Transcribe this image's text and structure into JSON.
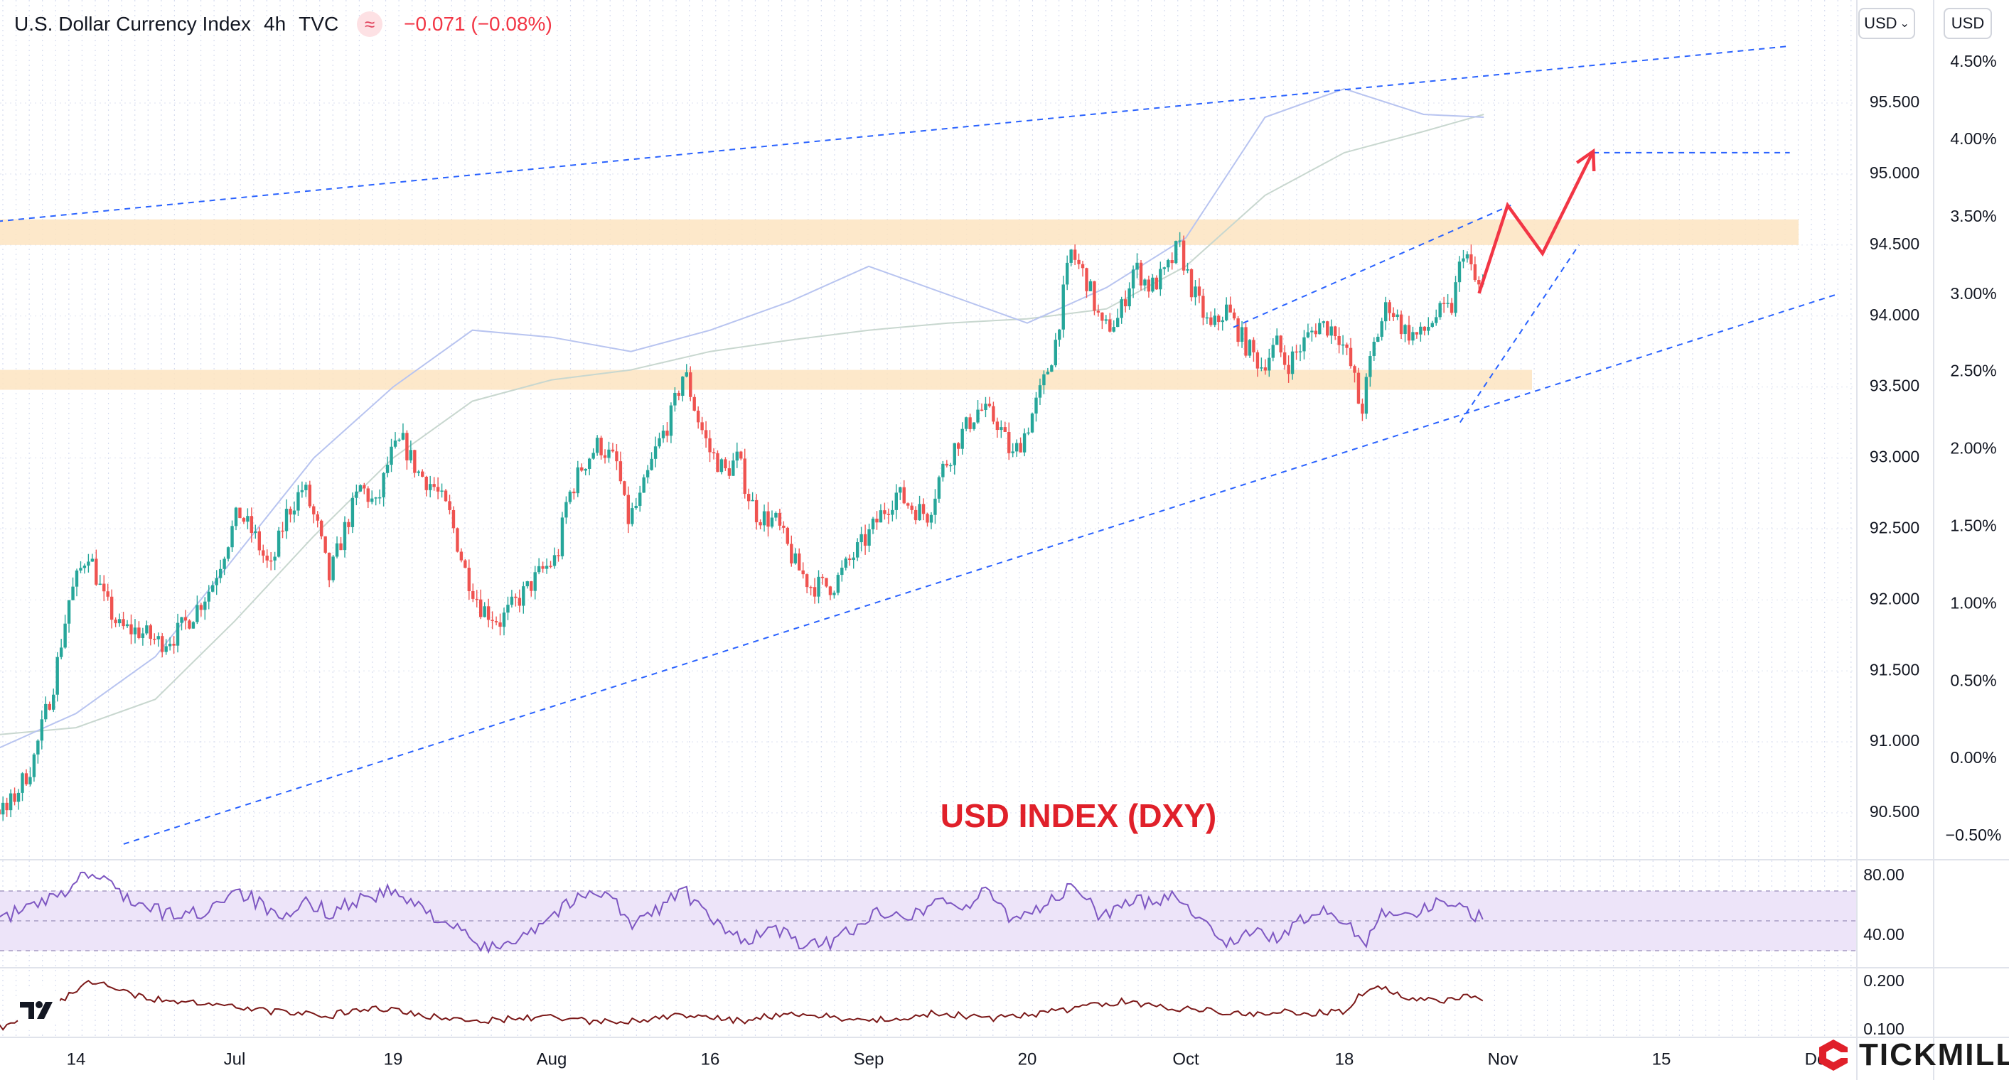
{
  "header": {
    "symbol": "U.S. Dollar Currency Index",
    "timeframe": "4h",
    "source": "TVC",
    "indicator_icon": "waves-icon",
    "change": "−0.071 (−0.08%)"
  },
  "controls": {
    "currency_select": "USD",
    "currency_select_icon": "chevron-down-icon",
    "pct_axis_label": "USD"
  },
  "brand": {
    "name": "TICKMILL",
    "icon": "tickmill-logo-icon"
  },
  "colors": {
    "up": "#26a69a",
    "down": "#ef5350",
    "trend": "#2962ff",
    "zone": "#fde4c1",
    "forecast": "#f23645",
    "rsi": "#7e57c2",
    "osc": "#7b1818",
    "ma": "#b8c4f0"
  },
  "chart_data": [
    {
      "type": "candlestick",
      "name": "price",
      "annotation": "USD INDEX (DXY)",
      "y_ticks": [
        "95.500",
        "95.000",
        "94.500",
        "94.000",
        "93.500",
        "93.000",
        "92.500",
        "92.000",
        "91.500",
        "91.000",
        "90.500"
      ],
      "y_ticks_values": [
        95.5,
        95.0,
        94.5,
        94.0,
        93.5,
        93.0,
        92.5,
        92.0,
        91.5,
        91.0,
        90.5
      ],
      "pct_ticks": [
        "4.50%",
        "4.00%",
        "3.50%",
        "3.00%",
        "2.50%",
        "2.00%",
        "1.50%",
        "1.00%",
        "0.50%",
        "0.00%",
        "−0.50%"
      ],
      "pct_ticks_values": [
        4.5,
        4.0,
        3.5,
        3.0,
        2.5,
        2.0,
        1.5,
        1.0,
        0.5,
        0.0,
        -0.5
      ],
      "x_ticks": [
        "14",
        "Jul",
        "19",
        "Aug",
        "16",
        "Sep",
        "20",
        "Oct",
        "18",
        "Nov",
        "15",
        "Dec"
      ],
      "x_ticks_pos": [
        0,
        1,
        2,
        3,
        4,
        5,
        6,
        7,
        8,
        9,
        10,
        11
      ],
      "ylim": [
        90.2,
        95.95
      ],
      "resistance_zones": [
        [
          94.5,
          94.68
        ],
        [
          93.48,
          93.62
        ]
      ],
      "channel_upper": [
        [
          -1.1,
          94.6
        ],
        [
          10.8,
          95.9
        ]
      ],
      "channel_lower": [
        [
          0.3,
          90.28
        ],
        [
          11.1,
          94.15
        ]
      ],
      "wedge_upper": [
        [
          7.3,
          93.92
        ],
        [
          9.05,
          94.78
        ]
      ],
      "wedge_lower": [
        [
          8.73,
          93.25
        ],
        [
          9.48,
          94.5
        ]
      ],
      "target_line": [
        [
          9.57,
          95.15
        ],
        [
          10.81,
          95.15
        ]
      ],
      "forecast_path": [
        [
          8.85,
          94.16
        ],
        [
          9.03,
          94.78
        ],
        [
          9.25,
          94.44
        ],
        [
          9.57,
          95.16
        ]
      ],
      "path": [
        [
          -1.0,
          90.3
        ],
        [
          -0.74,
          90.45
        ],
        [
          -0.55,
          90.6
        ],
        [
          -0.42,
          90.5
        ],
        [
          -0.25,
          90.85
        ],
        [
          -0.12,
          91.4
        ],
        [
          -0.02,
          92.0
        ],
        [
          0.1,
          92.35
        ],
        [
          0.2,
          92.0
        ],
        [
          0.3,
          91.8
        ],
        [
          0.42,
          91.78
        ],
        [
          0.55,
          91.7
        ],
        [
          0.65,
          91.75
        ],
        [
          0.76,
          91.9
        ],
        [
          0.88,
          92.1
        ],
        [
          0.96,
          92.35
        ],
        [
          1.05,
          92.62
        ],
        [
          1.15,
          92.45
        ],
        [
          1.25,
          92.2
        ],
        [
          1.35,
          92.6
        ],
        [
          1.46,
          92.8
        ],
        [
          1.55,
          92.5
        ],
        [
          1.62,
          92.15
        ],
        [
          1.72,
          92.5
        ],
        [
          1.82,
          92.8
        ],
        [
          1.92,
          92.65
        ],
        [
          2.0,
          93.0
        ],
        [
          2.08,
          93.12
        ],
        [
          2.18,
          92.9
        ],
        [
          2.28,
          92.8
        ],
        [
          2.38,
          92.6
        ],
        [
          2.48,
          92.2
        ],
        [
          2.58,
          91.95
        ],
        [
          2.7,
          91.85
        ],
        [
          2.85,
          92.05
        ],
        [
          2.96,
          92.2
        ],
        [
          3.06,
          92.3
        ],
        [
          3.12,
          92.7
        ],
        [
          3.22,
          92.95
        ],
        [
          3.32,
          93.1
        ],
        [
          3.44,
          92.95
        ],
        [
          3.5,
          92.55
        ],
        [
          3.58,
          92.7
        ],
        [
          3.68,
          93.05
        ],
        [
          3.78,
          93.3
        ],
        [
          3.86,
          93.62
        ],
        [
          3.94,
          93.3
        ],
        [
          4.02,
          93.05
        ],
        [
          4.12,
          92.9
        ],
        [
          4.2,
          93.0
        ],
        [
          4.26,
          92.75
        ],
        [
          4.32,
          92.6
        ],
        [
          4.44,
          92.55
        ],
        [
          4.56,
          92.25
        ],
        [
          4.66,
          92.1
        ],
        [
          4.8,
          92.1
        ],
        [
          4.92,
          92.3
        ],
        [
          5.02,
          92.45
        ],
        [
          5.1,
          92.6
        ],
        [
          5.2,
          92.75
        ],
        [
          5.3,
          92.65
        ],
        [
          5.4,
          92.6
        ],
        [
          5.48,
          92.9
        ],
        [
          5.6,
          93.15
        ],
        [
          5.72,
          93.35
        ],
        [
          5.84,
          93.25
        ],
        [
          5.93,
          93.0
        ],
        [
          6.02,
          93.2
        ],
        [
          6.12,
          93.5
        ],
        [
          6.2,
          93.8
        ],
        [
          6.26,
          94.2
        ],
        [
          6.3,
          94.45
        ],
        [
          6.4,
          94.25
        ],
        [
          6.5,
          93.9
        ],
        [
          6.6,
          93.98
        ],
        [
          6.7,
          94.35
        ],
        [
          6.8,
          94.2
        ],
        [
          6.9,
          94.3
        ],
        [
          6.98,
          94.5
        ],
        [
          7.06,
          94.2
        ],
        [
          7.18,
          93.9
        ],
        [
          7.28,
          94.05
        ],
        [
          7.4,
          93.8
        ],
        [
          7.5,
          93.65
        ],
        [
          7.6,
          93.8
        ],
        [
          7.66,
          93.65
        ],
        [
          7.76,
          93.8
        ],
        [
          7.86,
          93.95
        ],
        [
          7.98,
          93.9
        ],
        [
          8.08,
          93.6
        ],
        [
          8.13,
          93.3
        ],
        [
          8.2,
          93.75
        ],
        [
          8.3,
          94.1
        ],
        [
          8.4,
          93.9
        ],
        [
          8.5,
          93.85
        ],
        [
          8.6,
          94.0
        ],
        [
          8.7,
          94.05
        ],
        [
          8.78,
          94.5
        ],
        [
          8.84,
          94.25
        ],
        [
          8.88,
          94.2
        ]
      ],
      "ma_slow": [
        [
          -1.0,
          91.2
        ],
        [
          -0.5,
          91.05
        ],
        [
          0.0,
          91.1
        ],
        [
          0.5,
          91.3
        ],
        [
          1.0,
          91.85
        ],
        [
          1.5,
          92.45
        ],
        [
          2.0,
          93.0
        ],
        [
          2.5,
          93.4
        ],
        [
          3.0,
          93.55
        ],
        [
          3.5,
          93.62
        ],
        [
          4.0,
          93.75
        ],
        [
          4.5,
          93.83
        ],
        [
          5.0,
          93.9
        ],
        [
          5.5,
          93.95
        ],
        [
          6.0,
          93.98
        ],
        [
          6.5,
          94.05
        ],
        [
          7.0,
          94.35
        ],
        [
          7.5,
          94.85
        ],
        [
          8.0,
          95.15
        ],
        [
          8.5,
          95.3
        ],
        [
          8.88,
          95.42
        ]
      ],
      "ma_fast": [
        [
          -1.0,
          90.9
        ],
        [
          -0.5,
          90.95
        ],
        [
          0.0,
          91.2
        ],
        [
          0.5,
          91.6
        ],
        [
          1.0,
          92.3
        ],
        [
          1.5,
          93.0
        ],
        [
          2.0,
          93.5
        ],
        [
          2.5,
          93.9
        ],
        [
          3.0,
          93.85
        ],
        [
          3.5,
          93.75
        ],
        [
          4.0,
          93.9
        ],
        [
          4.5,
          94.1
        ],
        [
          5.0,
          94.35
        ],
        [
          5.5,
          94.15
        ],
        [
          6.0,
          93.95
        ],
        [
          6.5,
          94.2
        ],
        [
          7.0,
          94.55
        ],
        [
          7.5,
          95.4
        ],
        [
          8.0,
          95.6
        ],
        [
          8.5,
          95.42
        ],
        [
          8.88,
          95.4
        ]
      ]
    },
    {
      "type": "line",
      "name": "RSI",
      "y_ticks": [
        "80.00",
        "40.00"
      ],
      "y_ticks_values": [
        80,
        40
      ],
      "band": [
        30,
        70
      ],
      "ylim": [
        20,
        90
      ],
      "path": [
        [
          -1.0,
          48
        ],
        [
          -0.75,
          46
        ],
        [
          -0.5,
          52
        ],
        [
          -0.3,
          58
        ],
        [
          -0.1,
          66
        ],
        [
          0.05,
          82
        ],
        [
          0.2,
          76
        ],
        [
          0.4,
          60
        ],
        [
          0.6,
          54
        ],
        [
          0.8,
          55
        ],
        [
          1.0,
          72
        ],
        [
          1.15,
          62
        ],
        [
          1.3,
          48
        ],
        [
          1.45,
          62
        ],
        [
          1.6,
          56
        ],
        [
          1.8,
          65
        ],
        [
          2.0,
          70
        ],
        [
          2.1,
          62
        ],
        [
          2.3,
          52
        ],
        [
          2.45,
          40
        ],
        [
          2.6,
          30
        ],
        [
          2.75,
          38
        ],
        [
          2.9,
          46
        ],
        [
          3.05,
          58
        ],
        [
          3.2,
          66
        ],
        [
          3.35,
          72
        ],
        [
          3.5,
          46
        ],
        [
          3.65,
          56
        ],
        [
          3.82,
          72
        ],
        [
          3.95,
          56
        ],
        [
          4.1,
          42
        ],
        [
          4.25,
          38
        ],
        [
          4.4,
          45
        ],
        [
          4.55,
          36
        ],
        [
          4.7,
          32
        ],
        [
          4.85,
          42
        ],
        [
          5.0,
          52
        ],
        [
          5.15,
          58
        ],
        [
          5.3,
          54
        ],
        [
          5.45,
          66
        ],
        [
          5.6,
          58
        ],
        [
          5.75,
          70
        ],
        [
          5.9,
          52
        ],
        [
          6.05,
          58
        ],
        [
          6.2,
          66
        ],
        [
          6.3,
          74
        ],
        [
          6.45,
          54
        ],
        [
          6.6,
          60
        ],
        [
          6.78,
          64
        ],
        [
          6.95,
          68
        ],
        [
          7.1,
          50
        ],
        [
          7.25,
          36
        ],
        [
          7.4,
          42
        ],
        [
          7.55,
          38
        ],
        [
          7.7,
          48
        ],
        [
          7.85,
          56
        ],
        [
          8.0,
          50
        ],
        [
          8.13,
          36
        ],
        [
          8.25,
          58
        ],
        [
          8.4,
          54
        ],
        [
          8.55,
          60
        ],
        [
          8.7,
          64
        ],
        [
          8.8,
          56
        ],
        [
          8.88,
          50
        ]
      ]
    },
    {
      "type": "line",
      "name": "oscillator",
      "y_ticks": [
        "0.200",
        "0.100"
      ],
      "y_ticks_values": [
        0.2,
        0.1
      ],
      "ylim": [
        0.075,
        0.245
      ],
      "path": [
        [
          -1.0,
          0.165
        ],
        [
          -0.8,
          0.135
        ],
        [
          -0.6,
          0.125
        ],
        [
          -0.45,
          0.105
        ],
        [
          -0.3,
          0.13
        ],
        [
          -0.15,
          0.14
        ],
        [
          -0.05,
          0.175
        ],
        [
          0.1,
          0.2
        ],
        [
          0.25,
          0.19
        ],
        [
          0.4,
          0.17
        ],
        [
          0.6,
          0.16
        ],
        [
          0.8,
          0.155
        ],
        [
          1.0,
          0.15
        ],
        [
          1.2,
          0.14
        ],
        [
          1.4,
          0.135
        ],
        [
          1.6,
          0.13
        ],
        [
          1.8,
          0.145
        ],
        [
          2.0,
          0.14
        ],
        [
          2.2,
          0.13
        ],
        [
          2.4,
          0.125
        ],
        [
          2.6,
          0.12
        ],
        [
          2.8,
          0.125
        ],
        [
          3.0,
          0.13
        ],
        [
          3.2,
          0.12
        ],
        [
          3.4,
          0.115
        ],
        [
          3.6,
          0.12
        ],
        [
          3.8,
          0.13
        ],
        [
          4.0,
          0.125
        ],
        [
          4.2,
          0.12
        ],
        [
          4.4,
          0.13
        ],
        [
          4.6,
          0.135
        ],
        [
          4.8,
          0.125
        ],
        [
          5.0,
          0.12
        ],
        [
          5.2,
          0.125
        ],
        [
          5.4,
          0.135
        ],
        [
          5.6,
          0.13
        ],
        [
          5.8,
          0.125
        ],
        [
          6.0,
          0.13
        ],
        [
          6.2,
          0.14
        ],
        [
          6.4,
          0.15
        ],
        [
          6.6,
          0.16
        ],
        [
          6.8,
          0.15
        ],
        [
          7.0,
          0.145
        ],
        [
          7.2,
          0.14
        ],
        [
          7.4,
          0.135
        ],
        [
          7.6,
          0.14
        ],
        [
          7.8,
          0.135
        ],
        [
          8.0,
          0.14
        ],
        [
          8.1,
          0.175
        ],
        [
          8.2,
          0.19
        ],
        [
          8.4,
          0.17
        ],
        [
          8.6,
          0.16
        ],
        [
          8.75,
          0.17
        ],
        [
          8.88,
          0.165
        ]
      ]
    }
  ]
}
